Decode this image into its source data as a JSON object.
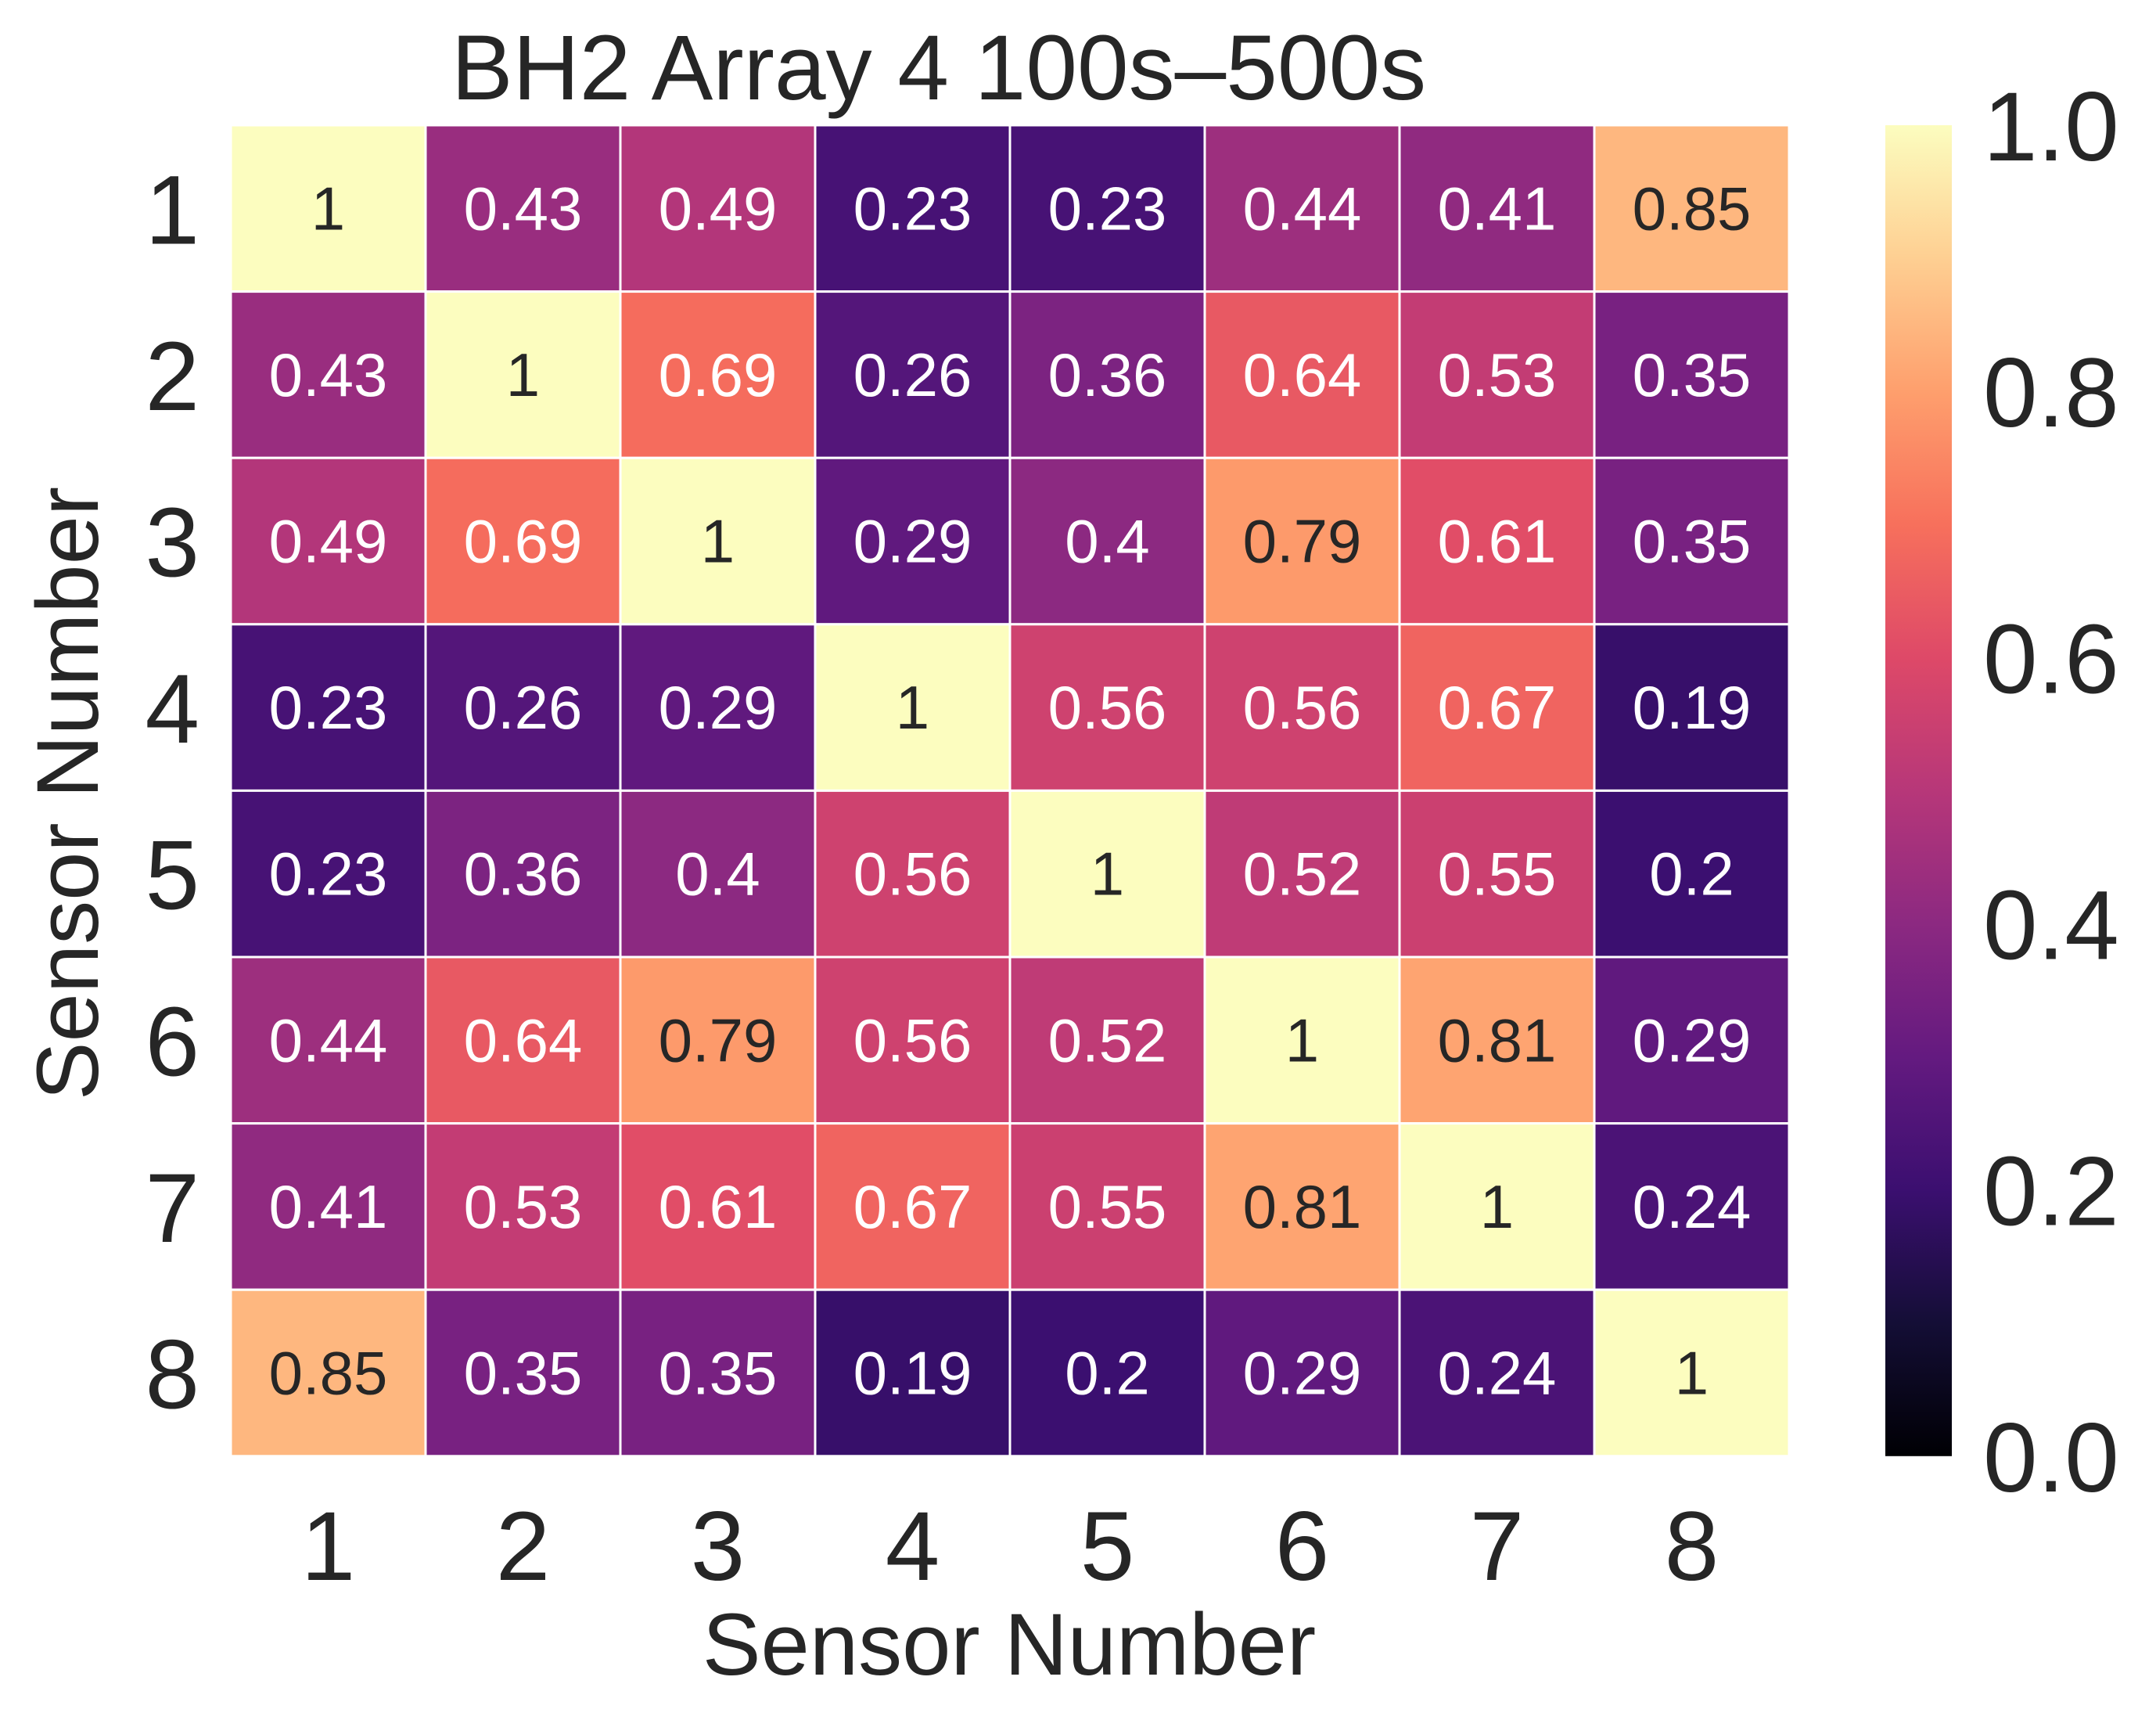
{
  "chart_data": {
    "type": "heatmap",
    "title": "BH2 Array 4 100s–500s",
    "xlabel": "Sensor Number",
    "ylabel": "Sensor Number",
    "x_categories": [
      "1",
      "2",
      "3",
      "4",
      "5",
      "6",
      "7",
      "8"
    ],
    "y_categories": [
      "1",
      "2",
      "3",
      "4",
      "5",
      "6",
      "7",
      "8"
    ],
    "values": [
      [
        1,
        0.43,
        0.49,
        0.23,
        0.23,
        0.44,
        0.41,
        0.85
      ],
      [
        0.43,
        1,
        0.69,
        0.26,
        0.36,
        0.64,
        0.53,
        0.35
      ],
      [
        0.49,
        0.69,
        1,
        0.29,
        0.4,
        0.79,
        0.61,
        0.35
      ],
      [
        0.23,
        0.26,
        0.29,
        1,
        0.56,
        0.56,
        0.67,
        0.19
      ],
      [
        0.23,
        0.36,
        0.4,
        0.56,
        1,
        0.52,
        0.55,
        0.2
      ],
      [
        0.44,
        0.64,
        0.79,
        0.56,
        0.52,
        1,
        0.81,
        0.29
      ],
      [
        0.41,
        0.53,
        0.61,
        0.67,
        0.55,
        0.81,
        1,
        0.24
      ],
      [
        0.85,
        0.35,
        0.35,
        0.19,
        0.2,
        0.29,
        0.24,
        1
      ]
    ],
    "value_range": [
      0,
      1
    ],
    "colormap": "magma",
    "colorbar": {
      "ticks": [
        "0.0",
        "0.2",
        "0.4",
        "0.6",
        "0.8",
        "1.0"
      ],
      "placement": "right"
    },
    "grid": true
  },
  "colors": {
    "text": "#262626",
    "cell_border": "#ffffff",
    "label_light": "#ffffff",
    "label_dark": "#262626"
  }
}
